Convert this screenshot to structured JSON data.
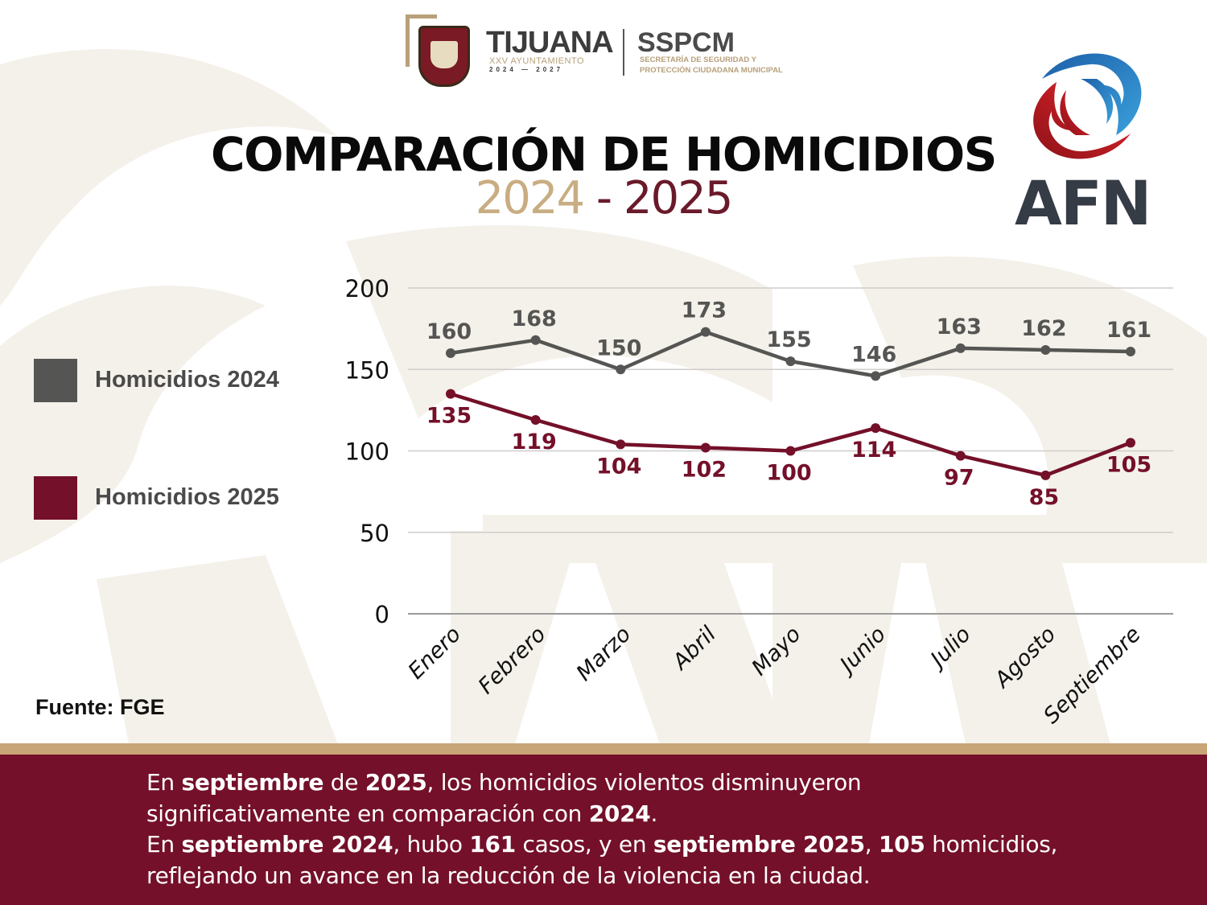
{
  "header": {
    "municipality_logo": {
      "title": "TIJUANA",
      "subtitle_line1": "XXV AYUNTAMIENTO",
      "subtitle_line2": "2024 — 2027"
    },
    "agency_logo": {
      "title": "SSPCM",
      "subtitle_line1": "SECRETARÍA DE SEGURIDAD Y",
      "subtitle_line2": "PROTECCIÓN CIUDADANA MUNICIPAL"
    },
    "brand_logo": {
      "text": "AFN",
      "icon": "swirl-logo-icon"
    },
    "title": "COMPARACIÓN DE HOMICIDIOS",
    "subtitle": {
      "year_from": "2024",
      "separator": " - ",
      "year_to": "2025"
    }
  },
  "legend": [
    {
      "label": "Homicidios 2024",
      "color": "#555553"
    },
    {
      "label": "Homicidios 2025",
      "color": "#741029"
    }
  ],
  "source": "Fuente: FGE",
  "colors": {
    "series_2024": "#555553",
    "series_2025": "#741029",
    "accent_gold": "#c8a577",
    "footer_bg": "#741029"
  },
  "chart_data": {
    "type": "line",
    "title": "COMPARACIÓN DE HOMICIDIOS 2024 - 2025",
    "xlabel": "",
    "ylabel": "",
    "categories": [
      "Enero",
      "Febrero",
      "Marzo",
      "Abril",
      "Mayo",
      "Junio",
      "Julio",
      "Agosto",
      "Septiembre"
    ],
    "series": [
      {
        "name": "Homicidios 2024",
        "color": "#555553",
        "values": [
          160,
          168,
          150,
          173,
          155,
          146,
          163,
          162,
          161
        ],
        "label_position": "above"
      },
      {
        "name": "Homicidios 2025",
        "color": "#741029",
        "values": [
          135,
          119,
          104,
          102,
          100,
          114,
          97,
          85,
          105
        ],
        "label_position": "below"
      }
    ],
    "ylim": [
      0,
      200
    ],
    "yticks": [
      0,
      50,
      100,
      150,
      200
    ],
    "grid": true,
    "legend_position": "left",
    "data_labels": true
  },
  "footer": {
    "paragraph1": [
      {
        "text": "En ",
        "bold": false
      },
      {
        "text": "septiembre",
        "bold": true
      },
      {
        "text": " de ",
        "bold": false
      },
      {
        "text": "2025",
        "bold": true
      },
      {
        "text": ", los homicidios violentos disminuyeron significativamente en comparación con ",
        "bold": false
      },
      {
        "text": "2024",
        "bold": true
      },
      {
        "text": ".",
        "bold": false
      }
    ],
    "paragraph2": [
      {
        "text": "En ",
        "bold": false
      },
      {
        "text": "septiembre 2024",
        "bold": true
      },
      {
        "text": ", hubo ",
        "bold": false
      },
      {
        "text": "161",
        "bold": true
      },
      {
        "text": " casos, y en ",
        "bold": false
      },
      {
        "text": "septiembre 2025",
        "bold": true
      },
      {
        "text": ", ",
        "bold": false
      },
      {
        "text": "105",
        "bold": true
      },
      {
        "text": " homicidios, reflejando un avance en la reducción de la violencia en la ciudad.",
        "bold": false
      }
    ]
  }
}
